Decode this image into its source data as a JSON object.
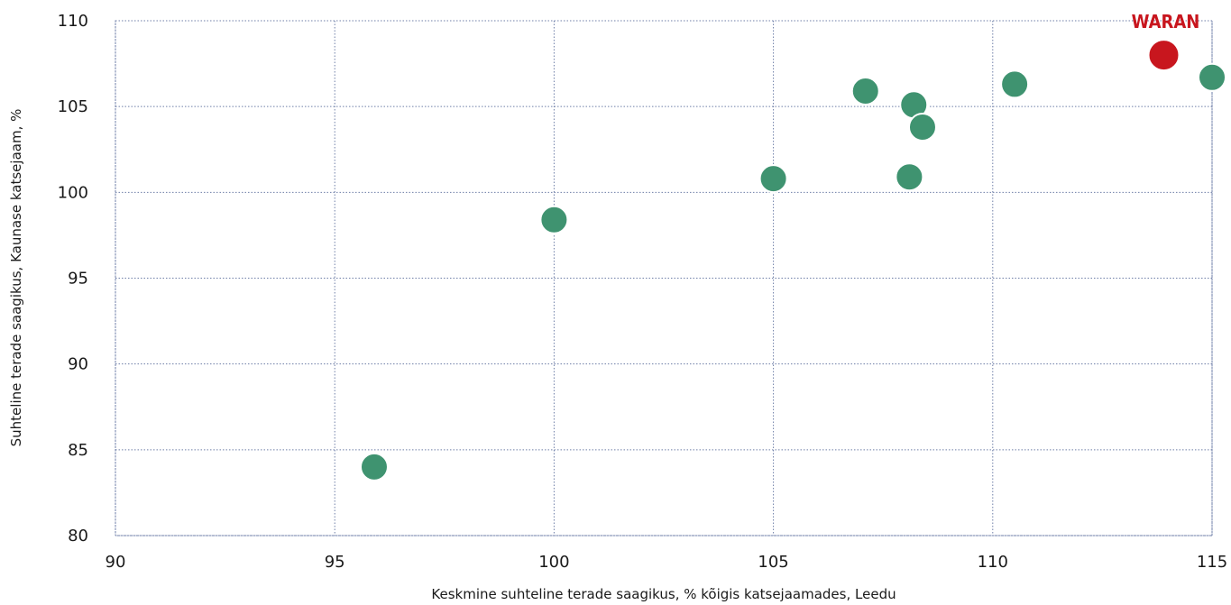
{
  "chart_data": {
    "type": "scatter",
    "title": "",
    "xlabel": "Keskmine suhteline terade saagikus, % kõigis katsejaamades, Leedu",
    "ylabel": "Suhteline terade saagikus, Kaunase katsejaam, %",
    "xlim": [
      90,
      115
    ],
    "ylim": [
      80,
      110
    ],
    "x_ticks": [
      "90",
      "95",
      "100",
      "105",
      "110",
      "115"
    ],
    "y_ticks": [
      "80",
      "85",
      "90",
      "95",
      "100",
      "105",
      "110"
    ],
    "grid": true,
    "colors": {
      "default_point": "#3f9370",
      "highlight_point": "#c8161e",
      "grid": "#6f7fa8"
    },
    "series": [
      {
        "points": [
          {
            "x": 95.9,
            "y": 84.0
          },
          {
            "x": 100.0,
            "y": 98.4
          },
          {
            "x": 105.0,
            "y": 100.8
          },
          {
            "x": 107.1,
            "y": 105.9
          },
          {
            "x": 108.1,
            "y": 100.9
          },
          {
            "x": 108.2,
            "y": 105.1
          },
          {
            "x": 108.4,
            "y": 103.8
          },
          {
            "x": 110.5,
            "y": 106.3
          },
          {
            "x": 115.0,
            "y": 106.7
          }
        ]
      },
      {
        "label": "WARAN",
        "highlight": true,
        "points": [
          {
            "x": 113.9,
            "y": 108.0
          }
        ]
      }
    ]
  }
}
